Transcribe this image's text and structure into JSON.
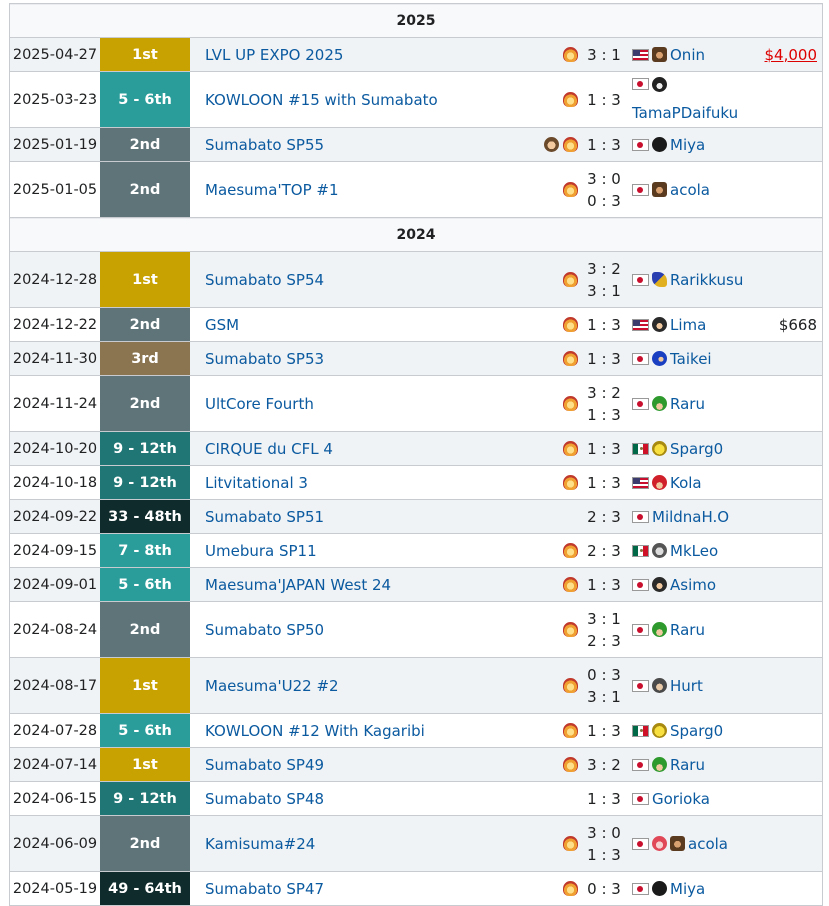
{
  "sections": [
    {
      "year": "2025",
      "rows": [
        {
          "date": "2025-04-27",
          "place": "1st",
          "place_class": "p-gold",
          "event": "LVL UP EXPO 2025",
          "chars": [
            "fire"
          ],
          "scores": [
            "3 : 1"
          ],
          "flag": "us",
          "opp_chars": [
            "brown"
          ],
          "opponent": "Onin",
          "prize": "$4,000",
          "prize_red": true,
          "tall": false
        },
        {
          "date": "2025-03-23",
          "place": "5 - 6th",
          "place_class": "p-top8",
          "event": "KOWLOON #15 with Sumabato",
          "chars": [
            "fire"
          ],
          "scores": [
            "1 : 3"
          ],
          "flag": "jp",
          "opp_chars": [
            "dark"
          ],
          "opponent": "TamaPDaifuku",
          "prize": "",
          "tall": true
        },
        {
          "date": "2025-01-19",
          "place": "2nd",
          "place_class": "p-silver",
          "event": "Sumabato SP55",
          "chars": [
            "woman",
            "fire"
          ],
          "scores": [
            "1 : 3"
          ],
          "flag": "jp",
          "opp_chars": [
            "black"
          ],
          "opponent": "Miya",
          "prize": "",
          "tall": false
        },
        {
          "date": "2025-01-05",
          "place": "2nd",
          "place_class": "p-silver",
          "event": "Maesuma'TOP #1",
          "chars": [
            "fire"
          ],
          "scores": [
            "3 : 0",
            "0 : 3"
          ],
          "flag": "jp",
          "opp_chars": [
            "brown"
          ],
          "opponent": "acola",
          "prize": "",
          "tall": true
        }
      ]
    },
    {
      "year": "2024",
      "rows": [
        {
          "date": "2024-12-28",
          "place": "1st",
          "place_class": "p-gold",
          "event": "Sumabato SP54",
          "chars": [
            "fire"
          ],
          "scores": [
            "3 : 2",
            "3 : 1"
          ],
          "flag": "jp",
          "opp_chars": [
            "falco"
          ],
          "opponent": "Rarikkusu",
          "prize": "",
          "tall": true
        },
        {
          "date": "2024-12-22",
          "place": "2nd",
          "place_class": "p-silver",
          "event": "GSM",
          "chars": [
            "fire"
          ],
          "scores": [
            "1 : 3"
          ],
          "flag": "us",
          "opp_chars": [
            "ninja"
          ],
          "opponent": "Lima",
          "prize": "$668",
          "tall": false
        },
        {
          "date": "2024-11-30",
          "place": "3rd",
          "place_class": "p-bronze",
          "event": "Sumabato SP53",
          "chars": [
            "fire"
          ],
          "scores": [
            "1 : 3"
          ],
          "flag": "jp",
          "opp_chars": [
            "sonic"
          ],
          "opponent": "Taikei",
          "prize": "",
          "tall": false
        },
        {
          "date": "2024-11-24",
          "place": "2nd",
          "place_class": "p-silver",
          "event": "UltCore Fourth",
          "chars": [
            "fire"
          ],
          "scores": [
            "3 : 2",
            "1 : 3"
          ],
          "flag": "jp",
          "opp_chars": [
            "luigi"
          ],
          "opponent": "Raru",
          "prize": "",
          "tall": true
        },
        {
          "date": "2024-10-20",
          "place": "9 - 12th",
          "place_class": "p-top12",
          "event": "CIRQUE du CFL 4",
          "chars": [
            "fire"
          ],
          "scores": [
            "1 : 3"
          ],
          "flag": "mx",
          "opp_chars": [
            "pika"
          ],
          "opponent": "Sparg0",
          "prize": "",
          "tall": false
        },
        {
          "date": "2024-10-18",
          "place": "9 - 12th",
          "place_class": "p-top12",
          "event": "Litvitational 3",
          "chars": [
            "fire"
          ],
          "scores": [
            "1 : 3"
          ],
          "flag": "us",
          "opp_chars": [
            "mario"
          ],
          "opponent": "Kola",
          "prize": "",
          "tall": false
        },
        {
          "date": "2024-09-22",
          "place": "33 - 48th",
          "place_class": "p-top48",
          "event": "Sumabato SP51",
          "chars": [],
          "scores": [
            "2 : 3"
          ],
          "flag": "jp",
          "opp_chars": [],
          "opponent": "MildnaH.O",
          "prize": "",
          "tall": false
        },
        {
          "date": "2024-09-15",
          "place": "7 - 8th",
          "place_class": "p-top8",
          "event": "Umebura SP11",
          "chars": [
            "fire"
          ],
          "scores": [
            "2 : 3"
          ],
          "flag": "mx",
          "opp_chars": [
            "mii"
          ],
          "opponent": "MkLeo",
          "prize": "",
          "tall": false
        },
        {
          "date": "2024-09-01",
          "place": "5 - 6th",
          "place_class": "p-top8",
          "event": "Maesuma'JAPAN West 24",
          "chars": [
            "fire"
          ],
          "scores": [
            "1 : 3"
          ],
          "flag": "jp",
          "opp_chars": [
            "ninja"
          ],
          "opponent": "Asimo",
          "prize": "",
          "tall": false
        },
        {
          "date": "2024-08-24",
          "place": "2nd",
          "place_class": "p-silver",
          "event": "Sumabato SP50",
          "chars": [
            "fire"
          ],
          "scores": [
            "3 : 1",
            "2 : 3"
          ],
          "flag": "jp",
          "opp_chars": [
            "luigi"
          ],
          "opponent": "Raru",
          "prize": "",
          "tall": true
        },
        {
          "date": "2024-08-17",
          "place": "1st",
          "place_class": "p-gold",
          "event": "Maesuma'U22 #2",
          "chars": [
            "fire"
          ],
          "scores": [
            "0 : 3",
            "3 : 1"
          ],
          "flag": "jp",
          "opp_chars": [
            "hurt"
          ],
          "opponent": "Hurt",
          "prize": "",
          "tall": true
        },
        {
          "date": "2024-07-28",
          "place": "5 - 6th",
          "place_class": "p-top8",
          "event": "KOWLOON #12 With Kagaribi",
          "chars": [
            "fire"
          ],
          "scores": [
            "1 : 3"
          ],
          "flag": "mx",
          "opp_chars": [
            "pika"
          ],
          "opponent": "Sparg0",
          "prize": "",
          "tall": false
        },
        {
          "date": "2024-07-14",
          "place": "1st",
          "place_class": "p-gold",
          "event": "Sumabato SP49",
          "chars": [
            "fire"
          ],
          "scores": [
            "3 : 2"
          ],
          "flag": "jp",
          "opp_chars": [
            "luigi"
          ],
          "opponent": "Raru",
          "prize": "",
          "tall": false
        },
        {
          "date": "2024-06-15",
          "place": "9 - 12th",
          "place_class": "p-top12",
          "event": "Sumabato SP48",
          "chars": [],
          "scores": [
            "1 : 3"
          ],
          "flag": "jp",
          "opp_chars": [],
          "opponent": "Gorioka",
          "prize": "",
          "tall": false
        },
        {
          "date": "2024-06-09",
          "place": "2nd",
          "place_class": "p-silver",
          "event": "Kamisuma#24",
          "chars": [
            "fire"
          ],
          "scores": [
            "3 : 0",
            "1 : 3"
          ],
          "flag": "jp",
          "opp_chars": [
            "peach",
            "brown"
          ],
          "opponent": "acola",
          "prize": "",
          "tall": true
        },
        {
          "date": "2024-05-19",
          "place": "49 - 64th",
          "place_class": "p-top48",
          "event": "Sumabato SP47",
          "chars": [
            "fire"
          ],
          "scores": [
            "0 : 3"
          ],
          "flag": "jp",
          "opp_chars": [
            "black"
          ],
          "opponent": "Miya",
          "prize": "",
          "tall": false
        }
      ]
    }
  ]
}
